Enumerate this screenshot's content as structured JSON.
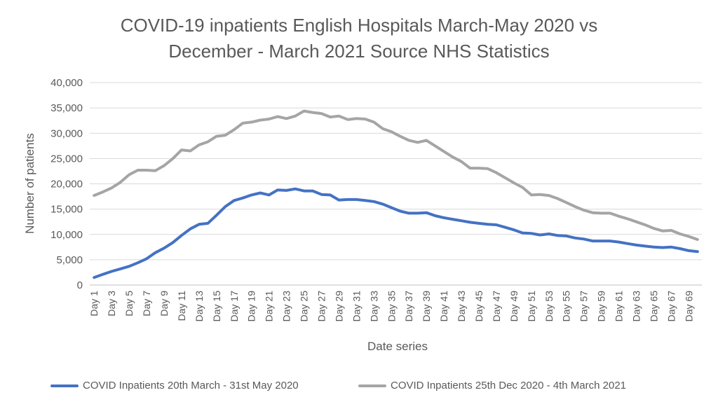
{
  "chart_data": {
    "type": "line",
    "title_line1": "COVID-19 inpatients English Hospitals March-May 2020 vs",
    "title_line2": "December - March 2021 Source NHS Statistics",
    "xlabel": "Date series",
    "ylabel": "Number of  patients",
    "ylim": [
      0,
      40000
    ],
    "yticks": [
      "0",
      "5,000",
      "10,000",
      "15,000",
      "20,000",
      "25,000",
      "30,000",
      "35,000",
      "40,000"
    ],
    "ytick_values": [
      0,
      5000,
      10000,
      15000,
      20000,
      25000,
      30000,
      35000,
      40000
    ],
    "categories": [
      "Day 1",
      "Day 2",
      "Day 3",
      "Day 4",
      "Day 5",
      "Day 6",
      "Day 7",
      "Day 8",
      "Day 9",
      "Day 10",
      "Day 11",
      "Day 12",
      "Day 13",
      "Day 14",
      "Day 15",
      "Day 16",
      "Day 17",
      "Day 18",
      "Day 19",
      "Day 20",
      "Day 21",
      "Day 22",
      "Day 23",
      "Day 24",
      "Day 25",
      "Day 26",
      "Day 27",
      "Day 28",
      "Day 29",
      "Day 30",
      "Day 31",
      "Day 32",
      "Day 33",
      "Day 34",
      "Day 35",
      "Day 36",
      "Day 37",
      "Day 38",
      "Day 39",
      "Day 40",
      "Day 41",
      "Day 42",
      "Day 43",
      "Day 44",
      "Day 45",
      "Day 46",
      "Day 47",
      "Day 48",
      "Day 49",
      "Day 50",
      "Day 51",
      "Day 52",
      "Day 53",
      "Day 54",
      "Day 55",
      "Day 56",
      "Day 57",
      "Day 58",
      "Day 59",
      "Day 60",
      "Day 61",
      "Day 62",
      "Day 63",
      "Day 64",
      "Day 65",
      "Day 66",
      "Day 67",
      "Day 68",
      "Day 69",
      "Day 70"
    ],
    "grid": true,
    "legend_position": "bottom",
    "series": [
      {
        "name": "COVID Inpatients 20th March - 31st May 2020",
        "color": "#4472C4",
        "values": [
          1500,
          2100,
          2700,
          3200,
          3700,
          4400,
          5200,
          6400,
          7300,
          8400,
          9800,
          11100,
          12000,
          12200,
          13800,
          15500,
          16700,
          17200,
          17800,
          18200,
          17800,
          18800,
          18700,
          19000,
          18600,
          18600,
          17900,
          17800,
          16800,
          16900,
          16900,
          16700,
          16500,
          16000,
          15300,
          14600,
          14200,
          14200,
          14300,
          13700,
          13300,
          13000,
          12700,
          12400,
          12200,
          12000,
          11900,
          11400,
          10900,
          10300,
          10200,
          9900,
          10100,
          9800,
          9700,
          9300,
          9100,
          8700,
          8700,
          8700,
          8500,
          8200,
          7900,
          7700,
          7500,
          7400,
          7500,
          7200,
          6800,
          6600
        ]
      },
      {
        "name": "COVID Inpatients 25th Dec 2020 - 4th March 2021",
        "color": "#A5A5A5",
        "values": [
          17700,
          18400,
          19200,
          20300,
          21800,
          22700,
          22700,
          22600,
          23600,
          25000,
          26700,
          26500,
          27700,
          28300,
          29400,
          29600,
          30700,
          32000,
          32200,
          32600,
          32800,
          33300,
          32900,
          33400,
          34400,
          34100,
          33900,
          33200,
          33400,
          32700,
          32900,
          32800,
          32200,
          30900,
          30300,
          29400,
          28600,
          28200,
          28600,
          27500,
          26400,
          25300,
          24400,
          23100,
          23100,
          23000,
          22200,
          21200,
          20200,
          19300,
          17800,
          17900,
          17700,
          17100,
          16300,
          15500,
          14800,
          14300,
          14200,
          14200,
          13600,
          13100,
          12500,
          11900,
          11200,
          10700,
          10800,
          10100,
          9600,
          9000
        ]
      }
    ]
  }
}
